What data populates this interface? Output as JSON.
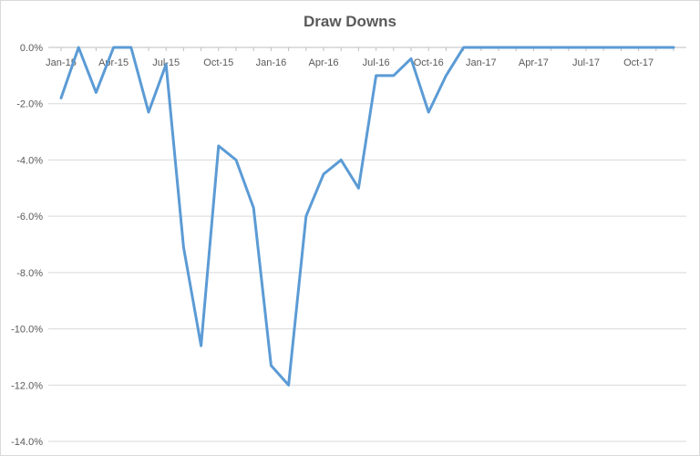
{
  "chart_data": {
    "type": "line",
    "title": "Draw Downs",
    "xlabel": "",
    "ylabel": "",
    "grid": true,
    "ylim": [
      -14.0,
      0.0
    ],
    "y_ticks": [
      "0.0%",
      "-2.0%",
      "-4.0%",
      "-6.0%",
      "-8.0%",
      "-10.0%",
      "-12.0%",
      "-14.0%"
    ],
    "y_tick_values": [
      0,
      -2,
      -4,
      -6,
      -8,
      -10,
      -12,
      -14
    ],
    "x_tick_labels": [
      "Jan-15",
      "Apr-15",
      "Jul-15",
      "Oct-15",
      "Jan-16",
      "Apr-16",
      "Jul-16",
      "Oct-16",
      "Jan-17",
      "Apr-17",
      "Jul-17",
      "Oct-17"
    ],
    "x_tick_index": [
      0,
      3,
      6,
      9,
      12,
      15,
      18,
      21,
      24,
      27,
      30,
      33
    ],
    "x": [
      "Jan-15",
      "Feb-15",
      "Mar-15",
      "Apr-15",
      "May-15",
      "Jun-15",
      "Jul-15",
      "Aug-15",
      "Sep-15",
      "Oct-15",
      "Nov-15",
      "Dec-15",
      "Jan-16",
      "Feb-16",
      "Mar-16",
      "Apr-16",
      "May-16",
      "Jun-16",
      "Jul-16",
      "Aug-16",
      "Sep-16",
      "Oct-16",
      "Nov-16",
      "Dec-16",
      "Jan-17",
      "Feb-17",
      "Mar-17",
      "Apr-17",
      "May-17",
      "Jun-17",
      "Jul-17",
      "Aug-17",
      "Sep-17",
      "Oct-17",
      "Nov-17",
      "Dec-17"
    ],
    "series": [
      {
        "color": "#5b9bd5",
        "values": [
          -1.8,
          0.0,
          -1.6,
          0.0,
          0.0,
          -2.3,
          -0.6,
          -7.1,
          -10.6,
          -3.5,
          -4.0,
          -5.7,
          -11.3,
          -12.0,
          -6.0,
          -4.5,
          -4.0,
          -5.0,
          -1.0,
          -1.0,
          -0.4,
          -2.3,
          -1.0,
          0.0,
          0.0,
          0.0,
          0.0,
          0.0,
          0.0,
          0.0,
          0.0,
          0.0,
          0.0,
          0.0,
          0.0,
          0.0
        ]
      }
    ]
  }
}
